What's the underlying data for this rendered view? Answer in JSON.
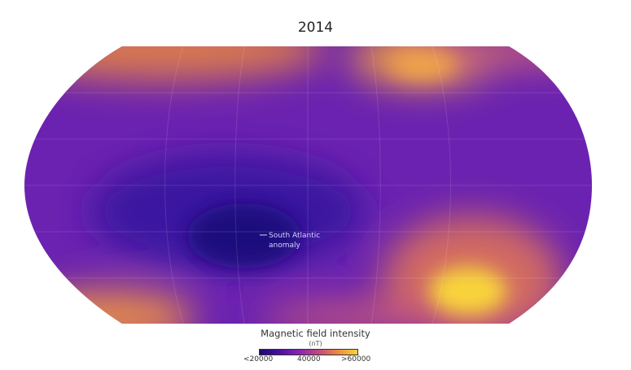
{
  "title": "2014",
  "annotation": "South Atlantic anomaly",
  "annotation_lines": [
    "South Atlantic",
    "anomaly"
  ],
  "legend": {
    "title": "Magnetic field intensity",
    "unit": "(nT)",
    "ticks": [
      "<20000",
      "40000",
      ">60000"
    ],
    "colors": [
      "#1a0a6e",
      "#4b0fa0",
      "#8a23b5",
      "#c2477f",
      "#eb8a45",
      "#f8d33a"
    ]
  },
  "map": {
    "projection": "world",
    "background_color": "#6b22b0"
  }
}
